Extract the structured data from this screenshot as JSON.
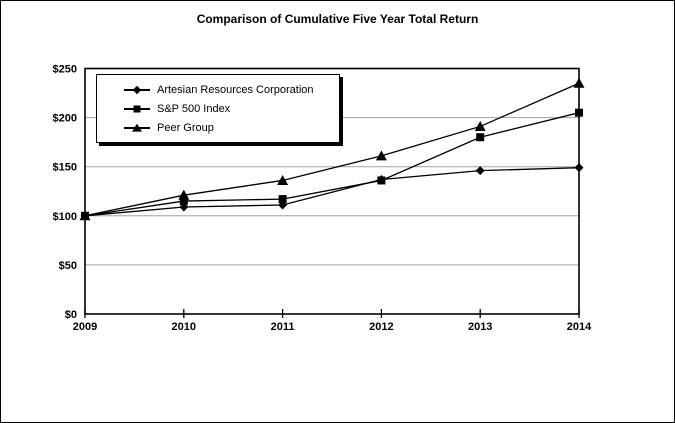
{
  "colors": {
    "background": "#ffffff",
    "frame": "#000000",
    "series": "#000000",
    "gridline": "#a3a3a3"
  },
  "chart_data": {
    "type": "line",
    "title": "Comparison of Cumulative Five Year Total Return",
    "x": [
      2009,
      2010,
      2011,
      2012,
      2013,
      2014
    ],
    "x_tick_labels": [
      "2009",
      "2010",
      "2011",
      "2012",
      "2013",
      "2014"
    ],
    "y_tick_labels": [
      "$0",
      "$50",
      "$100",
      "$150",
      "$200",
      "$250"
    ],
    "y_tick_values": [
      0,
      50,
      100,
      150,
      200,
      250
    ],
    "ylim": [
      0,
      250
    ],
    "grid": "horizontal",
    "legend_position": "top-left-inside",
    "series": [
      {
        "name": "Artesian Resources Corporation",
        "marker": "diamond",
        "values": [
          100,
          109,
          111,
          137,
          146,
          149
        ]
      },
      {
        "name": "S&P 500 Index",
        "marker": "square",
        "values": [
          100,
          115,
          117,
          136,
          180,
          205
        ]
      },
      {
        "name": "Peer Group",
        "marker": "triangle",
        "values": [
          100,
          121,
          136,
          161,
          191,
          235
        ]
      }
    ]
  }
}
